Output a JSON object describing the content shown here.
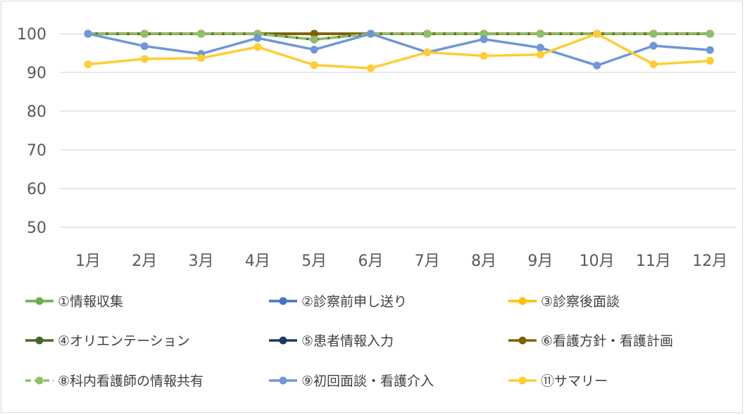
{
  "chart_data": {
    "type": "line",
    "title": "",
    "xlabel": "",
    "ylabel": "",
    "categories": [
      "1月",
      "2月",
      "3月",
      "4月",
      "5月",
      "6月",
      "7月",
      "8月",
      "9月",
      "10月",
      "11月",
      "12月"
    ],
    "yticks": [
      "50",
      "60",
      "70",
      "80",
      "90",
      "100"
    ],
    "ylim": [
      50,
      100
    ],
    "grid": true,
    "legend_position": "bottom",
    "series": [
      {
        "name": "①情報収集",
        "color": "#70ad47",
        "dashed": false,
        "values": [
          100,
          100,
          100,
          100,
          100,
          100,
          100,
          100,
          100,
          100,
          100,
          100
        ]
      },
      {
        "name": "②診察前申し送り",
        "color": "#4472c4",
        "dashed": false,
        "values": [
          100,
          100,
          100,
          100,
          100,
          100,
          100,
          100,
          100,
          100,
          100,
          100
        ]
      },
      {
        "name": "③診察後面談",
        "color": "#ffc000",
        "dashed": false,
        "values": [
          100,
          100,
          100,
          100,
          100,
          100,
          100,
          100,
          100,
          100,
          100,
          100
        ]
      },
      {
        "name": "④オリエンテーション",
        "color": "#43682b",
        "dashed": false,
        "values": [
          100,
          100,
          100,
          100,
          98.5,
          100,
          100,
          100,
          100,
          100,
          100,
          100
        ]
      },
      {
        "name": "⑤患者情報入力",
        "color": "#203864",
        "dashed": false,
        "values": [
          100,
          100,
          100,
          100,
          100,
          100,
          100,
          100,
          100,
          100,
          100,
          100
        ]
      },
      {
        "name": "⑥看護方針・看護計画",
        "color": "#806000",
        "dashed": false,
        "values": [
          100,
          100,
          100,
          100,
          100,
          100,
          100,
          100,
          100,
          100,
          100,
          100
        ]
      },
      {
        "name": "⑧科内看護師の情報共有",
        "color": "#8cc168",
        "dashed": true,
        "values": [
          100,
          100,
          100,
          100,
          98.5,
          100,
          100,
          100,
          100,
          100,
          100,
          100
        ]
      },
      {
        "name": "⑨初回面談・看護介入",
        "color": "#6f96d7",
        "dashed": false,
        "values": [
          100,
          96.8,
          94.8,
          98.9,
          95.9,
          100,
          95.2,
          98.6,
          96.4,
          91.8,
          96.9,
          95.8
        ]
      },
      {
        "name": "⑪サマリー",
        "color": "#ffcd33",
        "dashed": false,
        "values": [
          92.1,
          93.5,
          93.7,
          96.6,
          91.9,
          91.1,
          95.2,
          94.3,
          94.6,
          100,
          92.1,
          93.0
        ]
      }
    ]
  }
}
